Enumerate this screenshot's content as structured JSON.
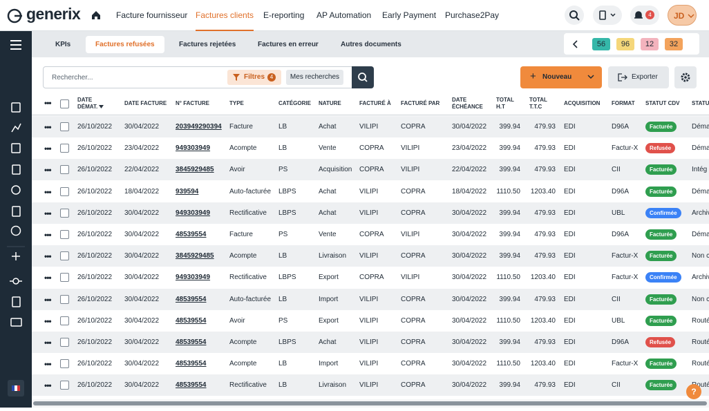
{
  "header": {
    "logo": "generix",
    "nav": [
      "Facture fournisseur",
      "Factures clients",
      "E-reporting",
      "AP Automation",
      "Early Payment",
      "Purchase2Pay"
    ],
    "active_nav": 1,
    "notifications": "4",
    "avatar": "JD"
  },
  "tabs": {
    "items": [
      "KPIs",
      "Factures refusées",
      "Factures rejetées",
      "Factures en erreur",
      "Autres documents"
    ],
    "active": 1,
    "counters": [
      {
        "label": "56",
        "color": "#35b7a9"
      },
      {
        "label": "96",
        "color": "#f5d77a"
      },
      {
        "label": "12",
        "color": "#f3b3bd"
      },
      {
        "label": "32",
        "color": "#f3a35c"
      }
    ]
  },
  "toolbar": {
    "search_placeholder": "Rechercher...",
    "filters": "Filtres",
    "filters_count": "4",
    "saved_searches": "Mes recherches",
    "new": "Nouveau",
    "export": "Exporter"
  },
  "table": {
    "columns": [
      "DATE\nDÉMAT.",
      "DATE FACTURE",
      "N° FACTURE",
      "TYPE",
      "CATÉGORIE",
      "NATURE",
      "FACTURÉ À",
      "FACTURÉ PAR",
      "DATE\nÉCHÉANCE",
      "TOTAL\nH.T",
      "TOTAL\nT.T.C",
      "ACQUISITION",
      "FORMAT",
      "STATUT CDV",
      "STATU"
    ],
    "rows": [
      [
        "26/10/2022",
        "30/04/2022",
        "203949290394",
        "Facture",
        "LB",
        "Achat",
        "VILIPI",
        "COPRA",
        "30/04/2022",
        "399.94",
        "479.93",
        "EDI",
        "D96A",
        {
          "label": "Facturée",
          "color": "#2f9e4f"
        },
        "Déma"
      ],
      [
        "26/10/2022",
        "23/04/2022",
        "949303949",
        "Acompte",
        "LB",
        "Vente",
        "COPRA",
        "VILIPI",
        "23/04/2022",
        "399.94",
        "479.93",
        "EDI",
        "Factur-X",
        {
          "label": "Refusée",
          "color": "#e0514b"
        },
        "Déma"
      ],
      [
        "26/10/2022",
        "22/04/2022",
        "3845929485",
        "Avoir",
        "PS",
        "Acquisition",
        "COPRA",
        "VILIPI",
        "22/04/2022",
        "399.94",
        "479.93",
        "EDI",
        "CII",
        {
          "label": "Facturée",
          "color": "#2f9e4f"
        },
        "Intég"
      ],
      [
        "26/10/2022",
        "18/04/2022",
        "939594",
        "Auto-facturée",
        "LBPS",
        "Achat",
        "VILIPI",
        "COPRA",
        "18/04/2022",
        "1110.50",
        "1203.40",
        "EDI",
        "D96A",
        {
          "label": "Facturée",
          "color": "#2f9e4f"
        },
        "Déma"
      ],
      [
        "26/10/2022",
        "30/04/2022",
        "949303949",
        "Rectificative",
        "LBPS",
        "Achat",
        "VILIPI",
        "COPRA",
        "30/04/2022",
        "399.94",
        "479.93",
        "EDI",
        "UBL",
        {
          "label": "Confirmée",
          "color": "#3b82f6"
        },
        "Archiv"
      ],
      [
        "26/10/2022",
        "30/04/2022",
        "48539554",
        "Facture",
        "PS",
        "Vente",
        "COPRA",
        "VILIPI",
        "30/04/2022",
        "399.94",
        "479.93",
        "EDI",
        "D96A",
        {
          "label": "Facturée",
          "color": "#2f9e4f"
        },
        "Déma"
      ],
      [
        "26/10/2022",
        "30/04/2022",
        "3845929485",
        "Acompte",
        "LB",
        "Livraison",
        "VILIPI",
        "COPRA",
        "30/04/2022",
        "399.94",
        "479.93",
        "EDI",
        "Factur-X",
        {
          "label": "Facturée",
          "color": "#2f9e4f"
        },
        "Non c"
      ],
      [
        "26/10/2022",
        "30/04/2022",
        "949303949",
        "Rectificative",
        "LBPS",
        "Export",
        "COPRA",
        "VILIPI",
        "30/04/2022",
        "1110.50",
        "1203.40",
        "EDI",
        "Factur-X",
        {
          "label": "Confirmée",
          "color": "#3b82f6"
        },
        "Archiv"
      ],
      [
        "26/10/2022",
        "30/04/2022",
        "48539554",
        "Auto-facturée",
        "LB",
        "Import",
        "VILIPI",
        "COPRA",
        "30/04/2022",
        "399.94",
        "479.93",
        "EDI",
        "CII",
        {
          "label": "Facturée",
          "color": "#2f9e4f"
        },
        "Non c"
      ],
      [
        "26/10/2022",
        "30/04/2022",
        "48539554",
        "Avoir",
        "PS",
        "Export",
        "VILIPI",
        "COPRA",
        "30/04/2022",
        "1110.50",
        "1203.40",
        "EDI",
        "UBL",
        {
          "label": "Facturée",
          "color": "#2f9e4f"
        },
        "Routé"
      ],
      [
        "26/10/2022",
        "30/04/2022",
        "48539554",
        "Acompte",
        "LBPS",
        "Achat",
        "VILIPI",
        "COPRA",
        "30/04/2022",
        "399.94",
        "479.93",
        "EDI",
        "D96A",
        {
          "label": "Refusée",
          "color": "#e0514b"
        },
        "Routé"
      ],
      [
        "26/10/2022",
        "30/04/2022",
        "48539554",
        "Acompte",
        "LB",
        "Import",
        "VILIPI",
        "COPRA",
        "30/04/2022",
        "1110.50",
        "1203.40",
        "EDI",
        "Factur-X",
        {
          "label": "Facturée",
          "color": "#2f9e4f"
        },
        "Routé"
      ],
      [
        "26/10/2022",
        "30/04/2022",
        "48539554",
        "Rectificative",
        "LB",
        "Livraison",
        "VILIPI",
        "COPRA",
        "30/04/2022",
        "399.94",
        "479.93",
        "EDI",
        "CII",
        {
          "label": "Facturée",
          "color": "#2f9e4f"
        },
        "Routé"
      ]
    ]
  }
}
